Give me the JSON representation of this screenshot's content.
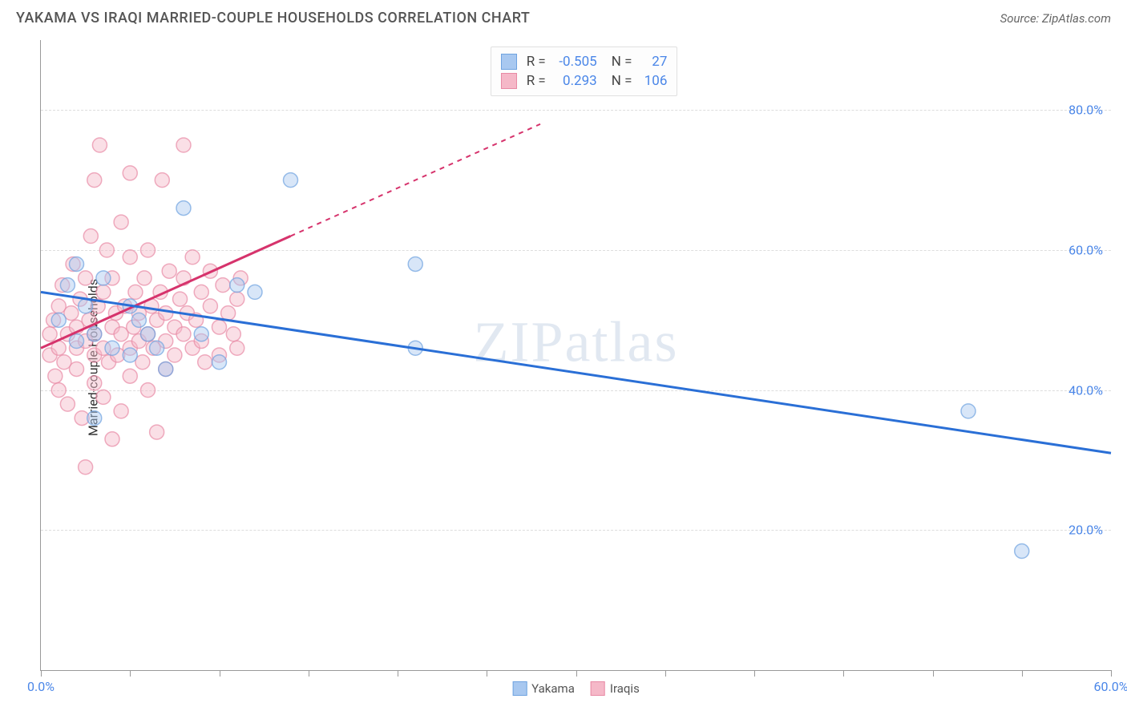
{
  "header": {
    "title": "YAKAMA VS IRAQI MARRIED-COUPLE HOUSEHOLDS CORRELATION CHART",
    "source": "Source: ZipAtlas.com"
  },
  "y_axis": {
    "label": "Married-couple Households"
  },
  "watermark": "ZIPatlas",
  "chart": {
    "type": "scatter",
    "xlim": [
      0,
      60
    ],
    "ylim": [
      0,
      90
    ],
    "x_ticks": [
      0,
      5,
      10,
      15,
      20,
      25,
      30,
      35,
      40,
      45,
      50,
      55,
      60
    ],
    "x_tick_labels": {
      "0": "0.0%",
      "60": "60.0%"
    },
    "y_gridlines": [
      20,
      40,
      60,
      80
    ],
    "y_tick_labels": {
      "20": "20.0%",
      "40": "40.0%",
      "60": "60.0%",
      "80": "80.0%"
    },
    "grid_color": "#dddddd",
    "background_color": "#ffffff",
    "marker_radius": 9,
    "marker_opacity": 0.45,
    "marker_stroke_width": 1.5,
    "series": [
      {
        "name": "Yakama",
        "color_fill": "#a8c8f0",
        "color_stroke": "#6fa3e0",
        "line_color": "#2a6fd6",
        "stats": {
          "R": "-0.505",
          "N": "27"
        },
        "trend": {
          "x1": 0,
          "y1": 54,
          "x2": 60,
          "y2": 31,
          "dash_after_x": null
        },
        "points": [
          [
            1,
            50
          ],
          [
            1.5,
            55
          ],
          [
            2,
            47
          ],
          [
            2,
            58
          ],
          [
            2.5,
            52
          ],
          [
            3,
            48
          ],
          [
            3,
            36
          ],
          [
            3.5,
            56
          ],
          [
            4,
            46
          ],
          [
            5,
            52
          ],
          [
            5,
            45
          ],
          [
            5.5,
            50
          ],
          [
            6,
            48
          ],
          [
            6.5,
            46
          ],
          [
            7,
            43
          ],
          [
            8,
            66
          ],
          [
            9,
            48
          ],
          [
            10,
            44
          ],
          [
            11,
            55
          ],
          [
            12,
            54
          ],
          [
            14,
            70
          ],
          [
            21,
            58
          ],
          [
            21,
            46
          ],
          [
            52,
            37
          ],
          [
            55,
            17
          ]
        ]
      },
      {
        "name": "Iraqis",
        "color_fill": "#f5b8c8",
        "color_stroke": "#e88aa5",
        "line_color": "#d6336c",
        "stats": {
          "R": "0.293",
          "N": "106"
        },
        "trend": {
          "x1": 0,
          "y1": 46,
          "x2": 28,
          "y2": 78,
          "dash_after_x": 14
        },
        "points": [
          [
            0.5,
            45
          ],
          [
            0.5,
            48
          ],
          [
            0.7,
            50
          ],
          [
            0.8,
            42
          ],
          [
            1,
            46
          ],
          [
            1,
            52
          ],
          [
            1,
            40
          ],
          [
            1.2,
            55
          ],
          [
            1.3,
            44
          ],
          [
            1.5,
            48
          ],
          [
            1.5,
            38
          ],
          [
            1.7,
            51
          ],
          [
            1.8,
            58
          ],
          [
            2,
            46
          ],
          [
            2,
            49
          ],
          [
            2,
            43
          ],
          [
            2.2,
            53
          ],
          [
            2.3,
            36
          ],
          [
            2.5,
            47
          ],
          [
            2.5,
            56
          ],
          [
            2.5,
            29
          ],
          [
            2.7,
            50
          ],
          [
            2.8,
            62
          ],
          [
            3,
            45
          ],
          [
            3,
            48
          ],
          [
            3,
            41
          ],
          [
            3,
            70
          ],
          [
            3.2,
            52
          ],
          [
            3.3,
            75
          ],
          [
            3.5,
            46
          ],
          [
            3.5,
            54
          ],
          [
            3.5,
            39
          ],
          [
            3.7,
            60
          ],
          [
            3.8,
            44
          ],
          [
            4,
            49
          ],
          [
            4,
            56
          ],
          [
            4,
            33
          ],
          [
            4.2,
            51
          ],
          [
            4.3,
            45
          ],
          [
            4.5,
            48
          ],
          [
            4.5,
            64
          ],
          [
            4.5,
            37
          ],
          [
            4.7,
            52
          ],
          [
            5,
            46
          ],
          [
            5,
            59
          ],
          [
            5,
            71
          ],
          [
            5,
            42
          ],
          [
            5.2,
            49
          ],
          [
            5.3,
            54
          ],
          [
            5.5,
            47
          ],
          [
            5.5,
            51
          ],
          [
            5.7,
            44
          ],
          [
            5.8,
            56
          ],
          [
            6,
            48
          ],
          [
            6,
            60
          ],
          [
            6,
            40
          ],
          [
            6.2,
            52
          ],
          [
            6.3,
            46
          ],
          [
            6.5,
            50
          ],
          [
            6.5,
            34
          ],
          [
            6.7,
            54
          ],
          [
            6.8,
            70
          ],
          [
            7,
            47
          ],
          [
            7,
            51
          ],
          [
            7,
            43
          ],
          [
            7.2,
            57
          ],
          [
            7.5,
            49
          ],
          [
            7.5,
            45
          ],
          [
            7.8,
            53
          ],
          [
            8,
            48
          ],
          [
            8,
            56
          ],
          [
            8,
            75
          ],
          [
            8.2,
            51
          ],
          [
            8.5,
            46
          ],
          [
            8.5,
            59
          ],
          [
            8.7,
            50
          ],
          [
            9,
            54
          ],
          [
            9,
            47
          ],
          [
            9.2,
            44
          ],
          [
            9.5,
            52
          ],
          [
            9.5,
            57
          ],
          [
            10,
            49
          ],
          [
            10,
            45
          ],
          [
            10.2,
            55
          ],
          [
            10.5,
            51
          ],
          [
            10.8,
            48
          ],
          [
            11,
            53
          ],
          [
            11,
            46
          ],
          [
            11.2,
            56
          ]
        ]
      }
    ],
    "legend": {
      "items": [
        {
          "label": "Yakama",
          "fill": "#a8c8f0",
          "stroke": "#6fa3e0"
        },
        {
          "label": "Iraqis",
          "fill": "#f5b8c8",
          "stroke": "#e88aa5"
        }
      ]
    }
  }
}
